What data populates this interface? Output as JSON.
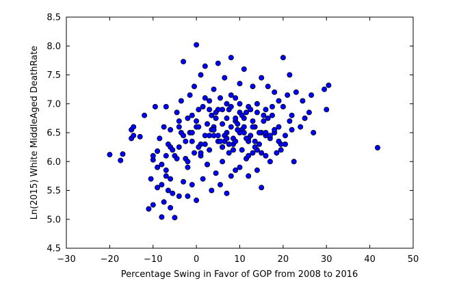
{
  "chart_data": {
    "type": "scatter",
    "title": "",
    "xlabel": "Percentage Swing in Favor of GOP from 2008 to 2016",
    "ylabel": "Ln(2015) White MiddleAged DeathRate",
    "xlim": [
      -30,
      50
    ],
    "ylim": [
      4.5,
      8.5
    ],
    "xticks": [
      -30,
      -20,
      -10,
      0,
      10,
      20,
      30,
      40,
      50
    ],
    "yticks": [
      4.5,
      5.0,
      5.5,
      6.0,
      6.5,
      7.0,
      7.5,
      8.0,
      8.5
    ],
    "xtick_labels": [
      "−30",
      "−20",
      "−10",
      "0",
      "10",
      "20",
      "30",
      "40",
      "50"
    ],
    "ytick_labels": [
      "4.5",
      "5.0",
      "5.5",
      "6.0",
      "6.5",
      "7.0",
      "7.5",
      "8.0",
      "8.5"
    ],
    "grid": false,
    "legend": "none",
    "marker_color": "#0000ff",
    "marker_edge": "#000000",
    "points": {
      "x": [
        -20,
        -17.5,
        -17,
        -15,
        -15,
        -14.5,
        -14.5,
        -13,
        -12,
        -11,
        -10.5,
        -10,
        -10,
        -9.5,
        -9,
        -9,
        -8.5,
        -8,
        -8,
        -7.5,
        -7.5,
        -7,
        -7,
        -7,
        -6.5,
        -6.5,
        -6,
        -6,
        -5.5,
        -5,
        -5,
        -4.5,
        -4,
        -4,
        -3.5,
        -3,
        -3,
        -2.5,
        -2,
        -2,
        -1.5,
        -1,
        -1,
        -0.5,
        0,
        0,
        0.5,
        1,
        1,
        1.5,
        2,
        2,
        2.5,
        3,
        3,
        3.5,
        4,
        4,
        4.5,
        5,
        5,
        5.5,
        6,
        6,
        6.5,
        7,
        7,
        7.5,
        8,
        8,
        8.5,
        9,
        9,
        9.5,
        10,
        10,
        10.5,
        11,
        11,
        11.5,
        12,
        12,
        12.5,
        13,
        13,
        13.5,
        14,
        14,
        14.5,
        15,
        15,
        15.5,
        16,
        16,
        16.5,
        17,
        17,
        17.5,
        18,
        18,
        18.5,
        19,
        19,
        19.5,
        20,
        20,
        20.5,
        21,
        21.5,
        22,
        22.5,
        23,
        24,
        24.5,
        25,
        26,
        26.5,
        27,
        29.5,
        30,
        30.5,
        41.8,
        0,
        -2.5,
        8,
        15,
        19.5,
        22,
        -1,
        3,
        6,
        9,
        12,
        15.5,
        18,
        20.5,
        2,
        5,
        7.5,
        10.5,
        13.5,
        16.5,
        -4,
        -2,
        1,
        4,
        7,
        10,
        13,
        16,
        19,
        21.5,
        -9,
        -6,
        -3.5,
        -0.5,
        2.5,
        5.5,
        8.5,
        11.5,
        14.5,
        17.5,
        -8,
        -5.5,
        -1.5,
        1.5,
        4.5,
        6.5,
        9.5,
        12.5,
        14,
        17,
        -10,
        -7,
        -4.5,
        0.5,
        3.5,
        6.5,
        10,
        13,
        -6,
        -3,
        0,
        3,
        6,
        9,
        12,
        15,
        -2,
        1,
        4,
        7,
        11,
        14,
        -4,
        -1,
        2,
        5,
        8.5,
        11,
        13.5,
        16,
        0.5,
        3.5,
        7,
        9,
        12,
        4,
        6,
        8,
        10,
        6,
        7.5,
        9.5,
        10.5,
        11.5,
        4.5,
        2.5,
        5.5,
        8
      ],
      "y": [
        6.12,
        6.02,
        6.13,
        6.55,
        6.4,
        6.45,
        6.6,
        6.43,
        6.8,
        5.18,
        5.7,
        5.25,
        6.03,
        6.95,
        5.55,
        6.18,
        6.4,
        5.04,
        5.6,
        6.6,
        5.3,
        6.1,
        5.75,
        6.95,
        5.5,
        6.3,
        5.2,
        6.55,
        5.45,
        5.03,
        6.1,
        6.85,
        5.4,
        6.25,
        7.05,
        5.65,
        7.73,
        6.05,
        5.4,
        6.75,
        7.15,
        5.6,
        6.35,
        7.3,
        8.02,
        5.33,
        6.9,
        6.1,
        7.5,
        5.7,
        6.45,
        7.65,
        5.95,
        6.2,
        7.05,
        5.5,
        6.6,
        7.25,
        5.8,
        6.35,
        7.7,
        5.6,
        6.9,
        6.0,
        7.45,
        5.45,
        6.5,
        6.9,
        7.8,
        5.75,
        6.4,
        7.1,
        5.85,
        6.55,
        7.35,
        5.9,
        6.2,
        6.75,
        7.6,
        6.05,
        6.95,
        5.75,
        6.45,
        7.3,
        6.15,
        6.6,
        7.0,
        5.85,
        6.3,
        7.45,
        5.55,
        6.7,
        6.1,
        6.9,
        7.3,
        6.4,
        6.0,
        6.8,
        7.2,
        6.5,
        6.15,
        7.05,
        6.6,
        6.3,
        7.8,
        6.95,
        6.45,
        7.15,
        7.5,
        6.55,
        6.0,
        7.2,
        6.6,
        7.05,
        6.75,
        6.85,
        7.15,
        6.5,
        7.25,
        6.9,
        7.32,
        6.24,
        6.6,
        6.35,
        6.95,
        6.5,
        6.2,
        6.8,
        6.8,
        6.45,
        6.25,
        6.7,
        6.4,
        6.8,
        6.55,
        6.3,
        7.1,
        6.9,
        6.15,
        6.55,
        6.35,
        6.75,
        6.6,
        6.0,
        6.3,
        6.55,
        7.0,
        6.85,
        6.6,
        6.45,
        6.35,
        6.7,
        5.9,
        6.25,
        6.5,
        6.15,
        6.65,
        7.1,
        6.3,
        6.85,
        6.5,
        6.95,
        5.95,
        6.2,
        6.5,
        6.95,
        6.75,
        6.45,
        6.65,
        6.9,
        6.2,
        6.45,
        6.1,
        5.85,
        6.05,
        6.25,
        6.55,
        6.35,
        7.0,
        6.7,
        5.7,
        6.45,
        6.7,
        6.9,
        6.25,
        6.75,
        6.35,
        6.15,
        5.9,
        6.15,
        6.55,
        6.75,
        6.5,
        6.85,
        6.7,
        6.5,
        6.3,
        6.45,
        6.2,
        6.6,
        6.25,
        6.5,
        6.6,
        6.8,
        6.4,
        6.35,
        6.1,
        6.45,
        6.25,
        6.6,
        6.5,
        6.65,
        6.3,
        6.55,
        6.8,
        6.4,
        6.85,
        5.95,
        6.35,
        7.15
      ]
    }
  }
}
